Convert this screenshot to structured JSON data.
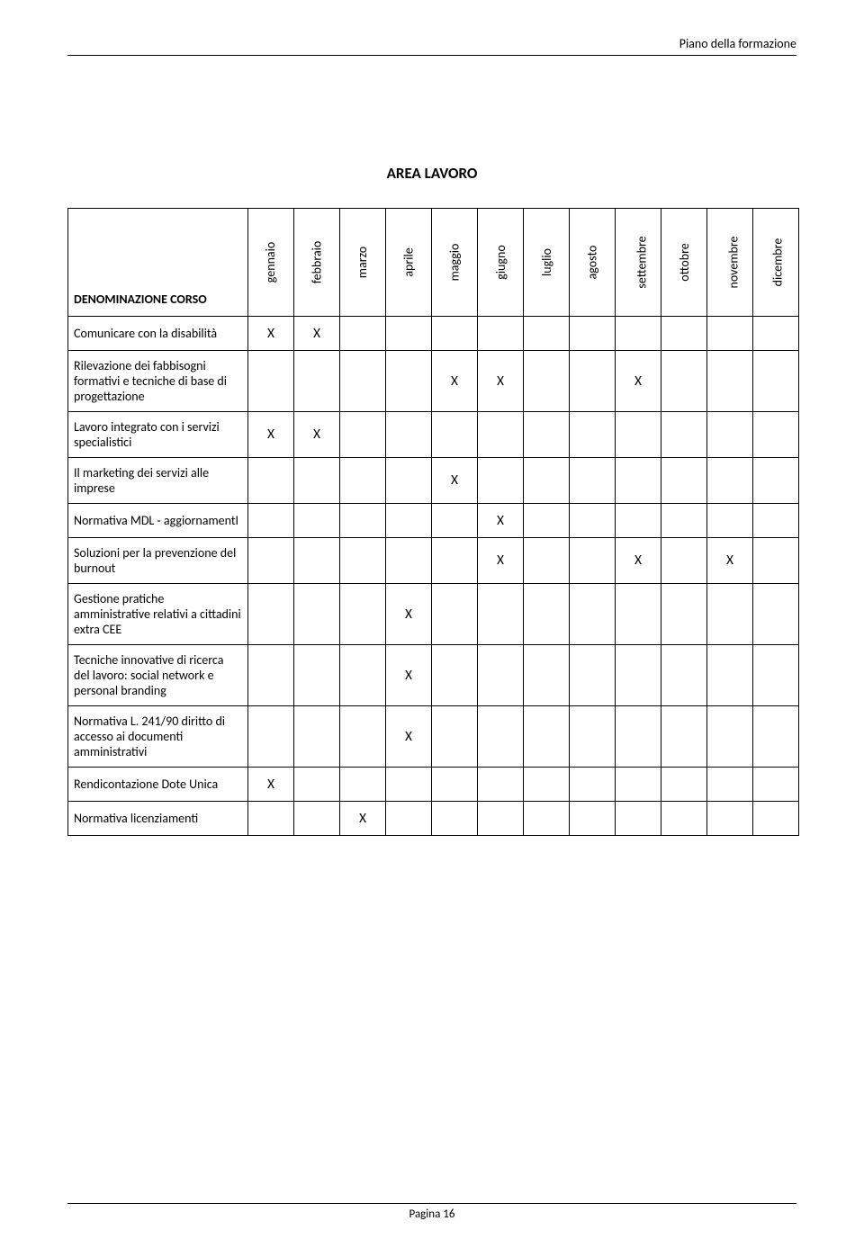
{
  "header": "Piano della formazione",
  "title": "AREA LAVORO",
  "footer": "Pagina 16",
  "firstColHeader": "DENOMINAZIONE CORSO",
  "months": [
    "gennaio",
    "febbraio",
    "marzo",
    "aprile",
    "maggio",
    "giugno",
    "luglio",
    "agosto",
    "settembre",
    "ottobre",
    "novembre",
    "dicembre"
  ],
  "rows": [
    {
      "label": "Comunicare con la disabilità",
      "marks": [
        "X",
        "X",
        "",
        "",
        "",
        "",
        "",
        "",
        "",
        "",
        "",
        ""
      ],
      "tall": false
    },
    {
      "label": "Rilevazione dei fabbisogni formativi e tecniche di base di progettazione",
      "marks": [
        "",
        "",
        "",
        "",
        "X",
        "X",
        "",
        "",
        "X",
        "",
        "",
        ""
      ],
      "tall": true
    },
    {
      "label": "Lavoro integrato con i servizi specialistici",
      "marks": [
        "X",
        "X",
        "",
        "",
        "",
        "",
        "",
        "",
        "",
        "",
        "",
        ""
      ],
      "tall": false
    },
    {
      "label": "Il marketing dei servizi alle imprese",
      "marks": [
        "",
        "",
        "",
        "",
        "X",
        "",
        "",
        "",
        "",
        "",
        "",
        ""
      ],
      "tall": false
    },
    {
      "label": "Normativa MDL - aggiornamentI",
      "marks": [
        "",
        "",
        "",
        "",
        "",
        "X",
        "",
        "",
        "",
        "",
        "",
        ""
      ],
      "tall": false
    },
    {
      "label": "Soluzioni per la prevenzione del burnout",
      "marks": [
        "",
        "",
        "",
        "",
        "",
        "X",
        "",
        "",
        "X",
        "",
        "X",
        ""
      ],
      "tall": false
    },
    {
      "label": "Gestione pratiche amministrative relativi a cittadini extra CEE",
      "marks": [
        "",
        "",
        "",
        "X",
        "",
        "",
        "",
        "",
        "",
        "",
        "",
        ""
      ],
      "tall": true
    },
    {
      "label": "Tecniche innovative di ricerca del lavoro: social network e personal branding",
      "marks": [
        "",
        "",
        "",
        "X",
        "",
        "",
        "",
        "",
        "",
        "",
        "",
        ""
      ],
      "tall": true
    },
    {
      "label": "Normativa L. 241/90 diritto di accesso ai documenti amministrativi",
      "marks": [
        "",
        "",
        "",
        "X",
        "",
        "",
        "",
        "",
        "",
        "",
        "",
        ""
      ],
      "tall": true
    },
    {
      "label": "Rendicontazione Dote Unica",
      "marks": [
        "X",
        "",
        "",
        "",
        "",
        "",
        "",
        "",
        "",
        "",
        "",
        ""
      ],
      "tall": false
    },
    {
      "label": "Normativa licenziamenti",
      "marks": [
        "",
        "",
        "X",
        "",
        "",
        "",
        "",
        "",
        "",
        "",
        "",
        ""
      ],
      "tall": false
    }
  ]
}
